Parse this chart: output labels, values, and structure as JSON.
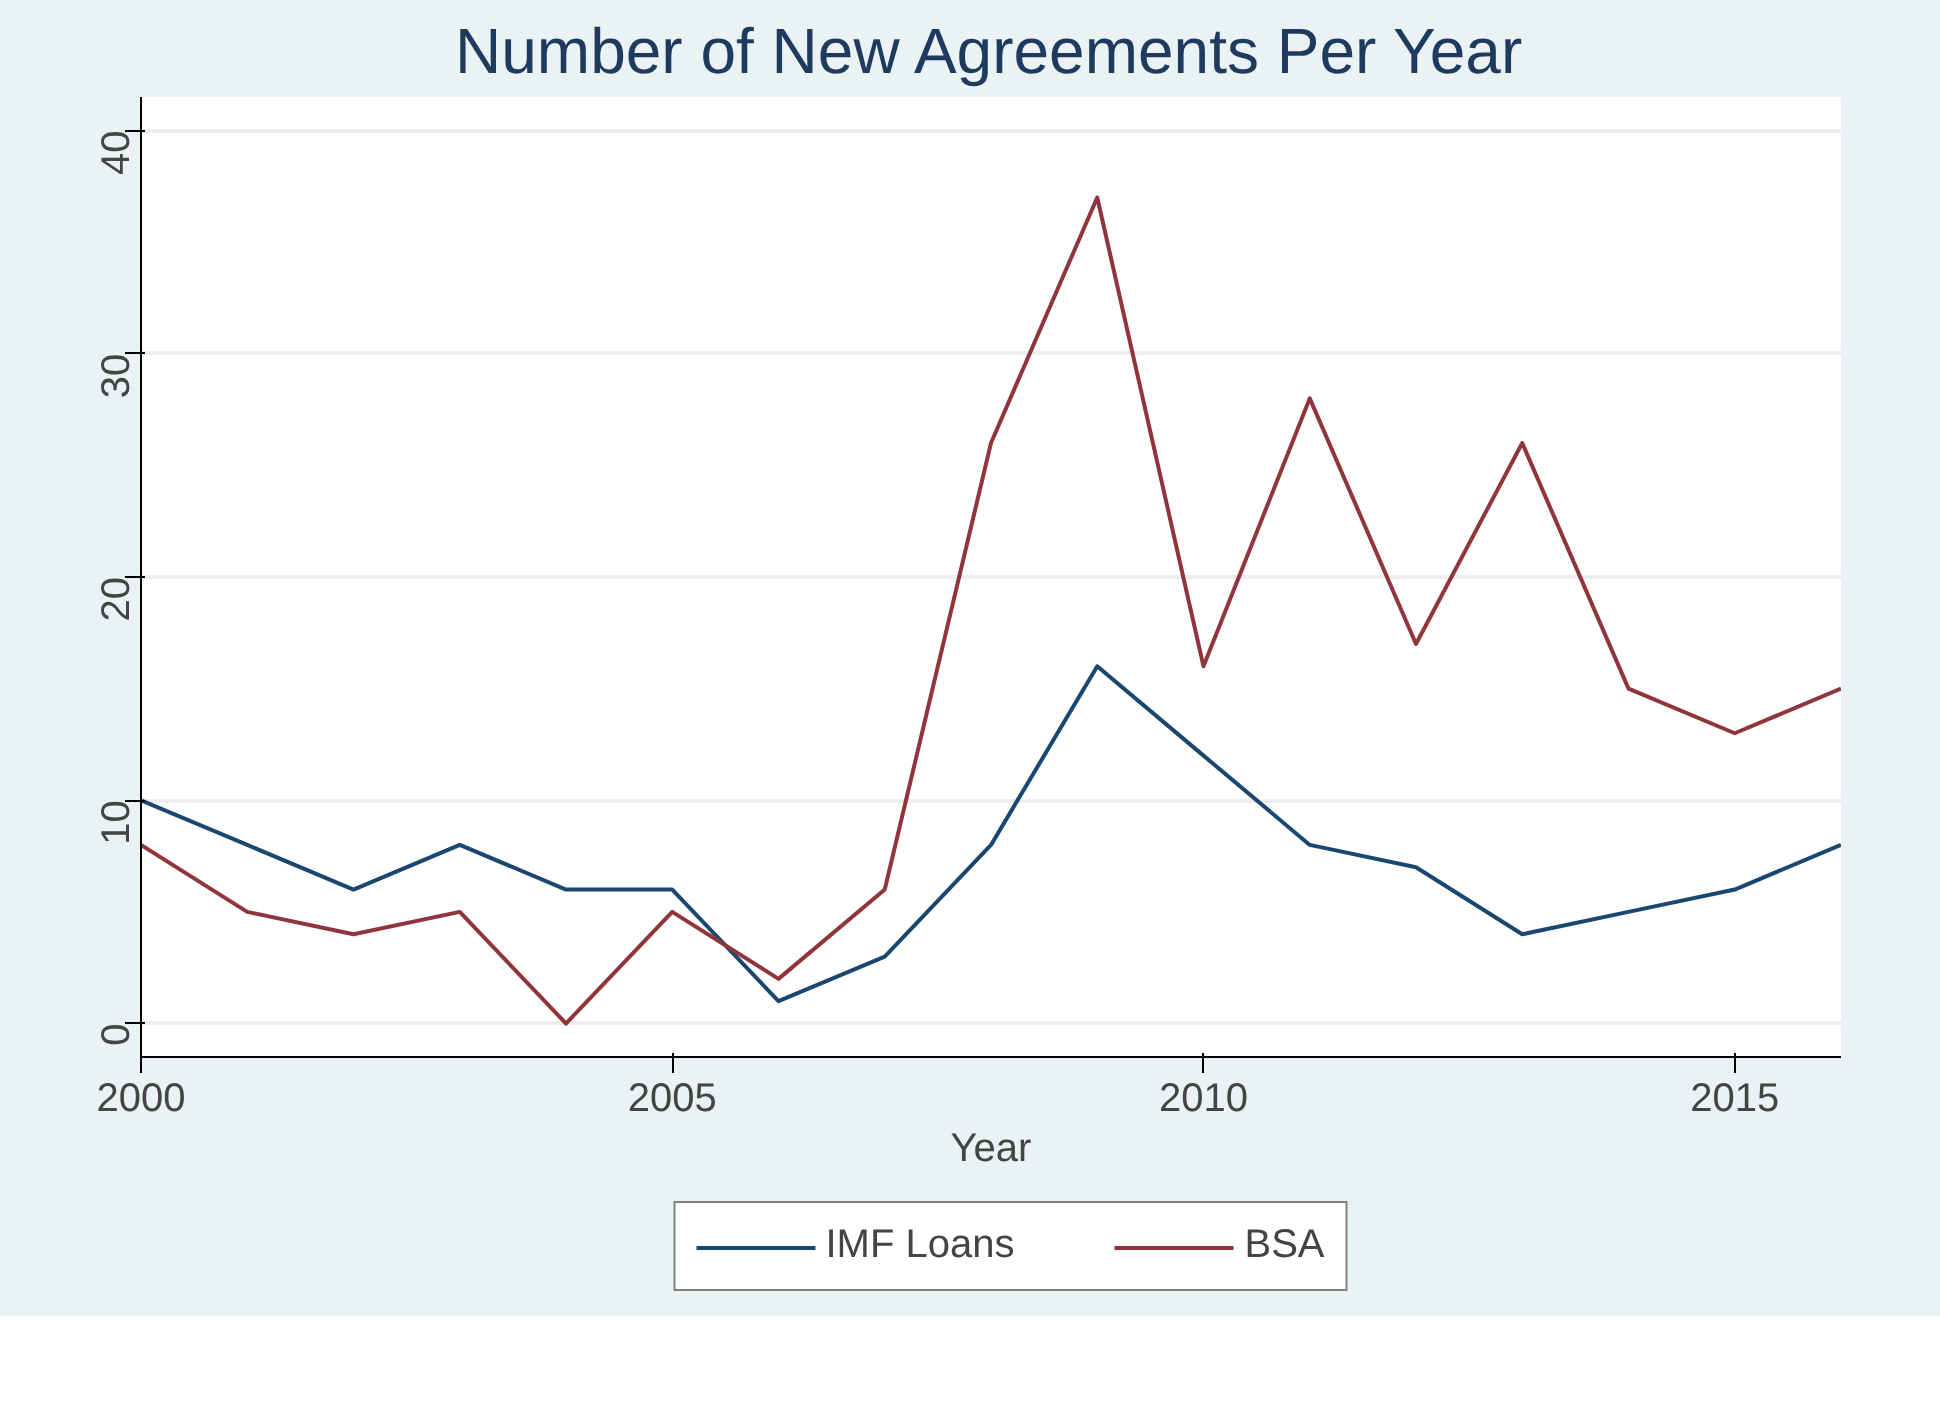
{
  "chart_data": {
    "type": "line",
    "title": "Number of New Agreements Per Year",
    "xlabel": "Year",
    "x": [
      2000,
      2001,
      2002,
      2003,
      2004,
      2005,
      2006,
      2007,
      2008,
      2009,
      2010,
      2011,
      2012,
      2013,
      2014,
      2015,
      2016
    ],
    "series": [
      {
        "name": "IMF Loans",
        "color": "#1a476f",
        "values": [
          10,
          8,
          6,
          8,
          6,
          6,
          1,
          3,
          8,
          16,
          12,
          8,
          7,
          4,
          5,
          6,
          8
        ]
      },
      {
        "name": "BSA",
        "color": "#90353b",
        "values": [
          8,
          5,
          4,
          5,
          0,
          5,
          2,
          6,
          26,
          37,
          16,
          28,
          17,
          26,
          15,
          13,
          15
        ]
      }
    ],
    "xlim": [
      2000,
      2016
    ],
    "xticks": [
      2000,
      2005,
      2010,
      2015
    ],
    "ylim": [
      -1.5,
      41.5
    ],
    "yticks": [
      0,
      10,
      20,
      30,
      40
    ],
    "grid": "y",
    "legend": "bottom",
    "marker": "none",
    "line_style": "solid"
  }
}
